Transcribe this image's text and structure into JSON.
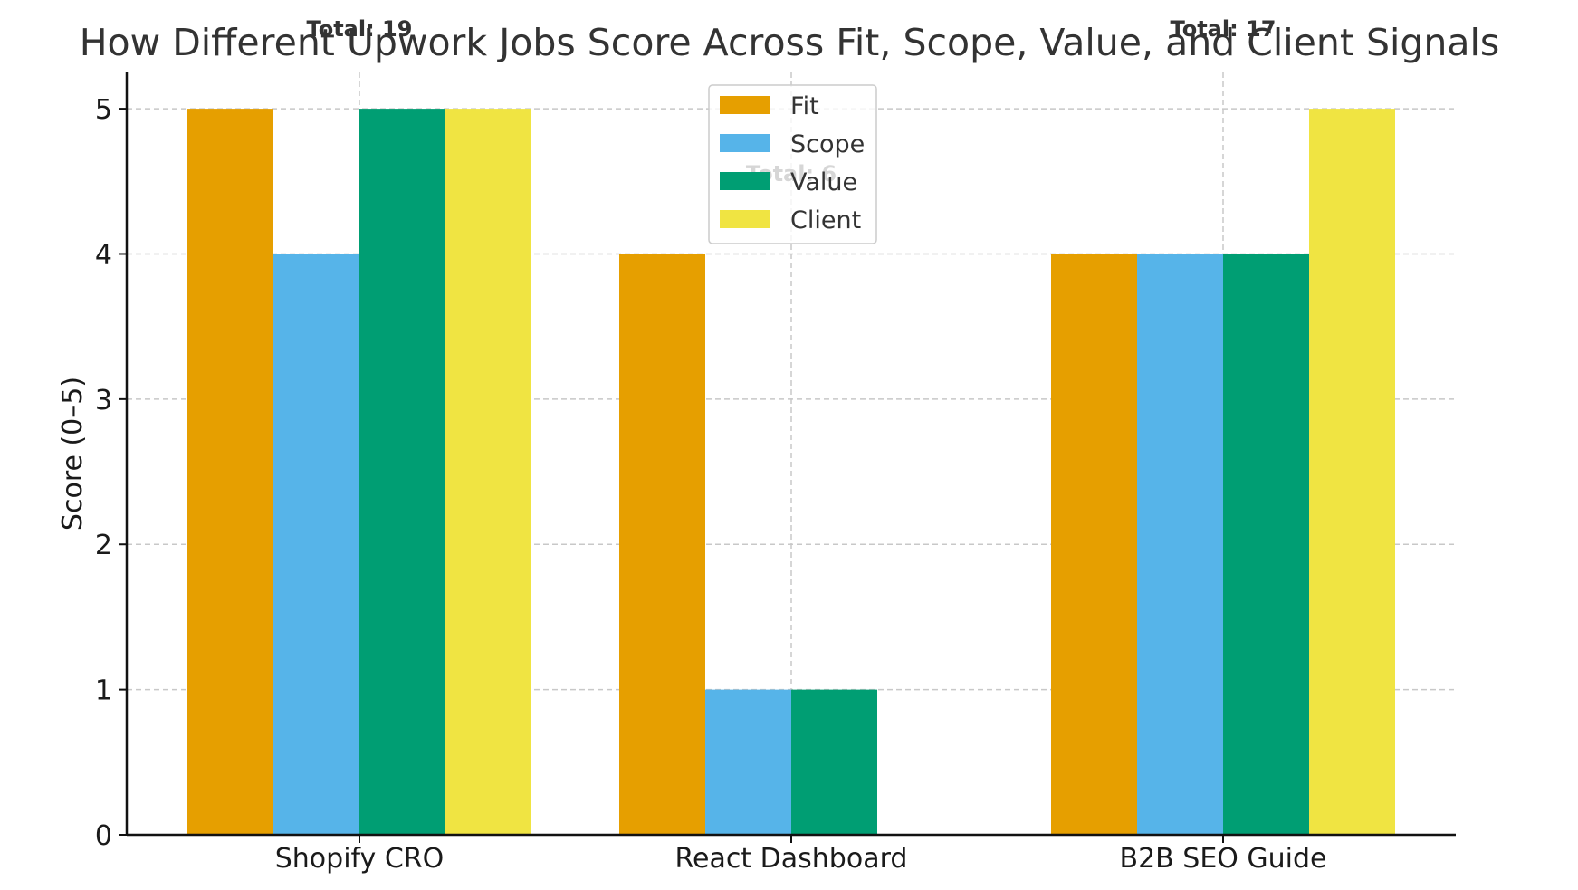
{
  "chart_data": {
    "type": "bar",
    "title": "How Different Upwork Jobs Score Across Fit, Scope, Value, and Client Signals",
    "xlabel": "",
    "ylabel": "Score (0–5)",
    "ylim": [
      0,
      5.25
    ],
    "yticks": [
      0,
      1,
      2,
      3,
      4,
      5
    ],
    "categories": [
      "Shopify CRO",
      "React Dashboard",
      "B2B SEO Guide"
    ],
    "series": [
      {
        "name": "Fit",
        "color": "#E69F00",
        "values": [
          5,
          4,
          4
        ]
      },
      {
        "name": "Scope",
        "color": "#56B4E9",
        "values": [
          4,
          1,
          4
        ]
      },
      {
        "name": "Value",
        "color": "#009E73",
        "values": [
          5,
          1,
          4
        ]
      },
      {
        "name": "Client",
        "color": "#F0E442",
        "values": [
          5,
          0,
          5
        ]
      }
    ],
    "annotations": [
      "Total: 19",
      "Total: 6",
      "Total: 17"
    ],
    "grid": true,
    "legend_position": "top-center"
  }
}
